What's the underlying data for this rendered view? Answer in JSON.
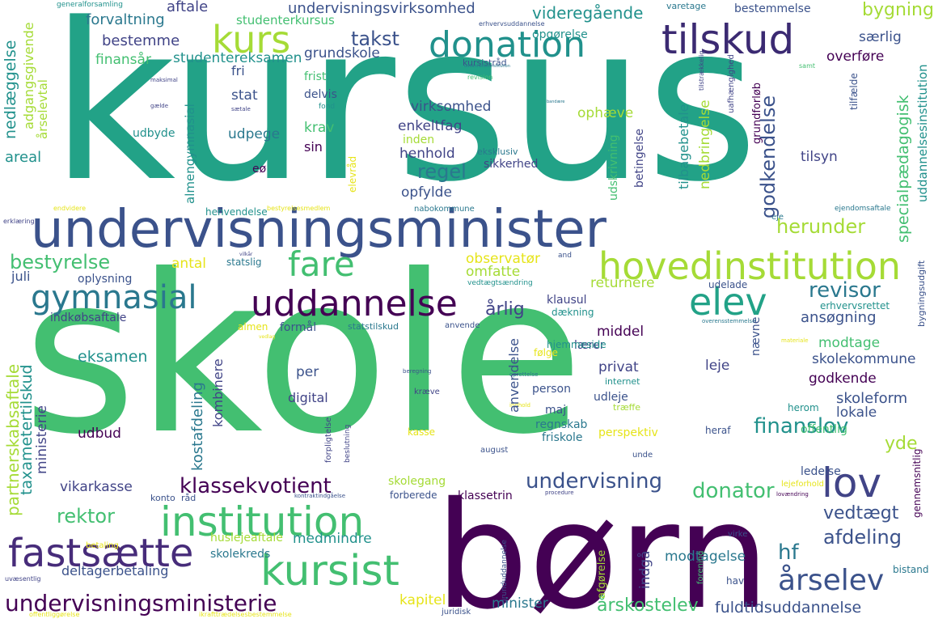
{
  "palette": {
    "teal": "#22a287",
    "green": "#43bf71",
    "lime": "#a5db36",
    "yellow": "#e6e419",
    "blue": "#3b528b",
    "indigo": "#414487",
    "purple": "#472c7a",
    "dark": "#440154",
    "cyan": "#2a788e",
    "sea": "#21918c"
  },
  "words": {
    "kursus": "kursus",
    "skole": "skole",
    "born": "børn",
    "undervisningsminister": "undervisningsminister",
    "tilskud": "tilskud",
    "donation": "donation",
    "kurs": "kurs",
    "hovedinstitution": "hovedinstitution",
    "institution": "institution",
    "fastsaette": "fastsætte",
    "kursist": "kursist",
    "uddannelse": "uddannelse",
    "elev": "elev",
    "fare": "fare",
    "gymnasial": "gymnasial",
    "lov": "lov",
    "undervisningsministerie": "undervisningsministerie",
    "aarselev": "årselev",
    "aarskostelev": "årskostelev",
    "klassekvotient": "klassekvotient",
    "undervisning": "undervisning",
    "finanslov": "finanslov",
    "donator": "donator",
    "bestyrelse": "bestyrelse",
    "regel": "regel",
    "takst": "takst",
    "revisor": "revisor",
    "rektor": "rektor",
    "afdeling": "afdeling",
    "hf": "hf",
    "herunder": "herunder",
    "bygning": "bygning",
    "videregaaende": "videregående",
    "undervisningsvirksomhed": "undervisningsvirksomhed",
    "studenterkursus": "studenterkursus",
    "studentereksamen": "studentereksamen",
    "forvaltning": "forvaltning",
    "bestemme": "bestemme",
    "aftale": "aftale",
    "finansaar": "finansår",
    "grundskole": "grundskole",
    "opgoerelse": "opgørelse",
    "saerlig": "særlig",
    "overfoere": "overføre",
    "bestemmelse": "bestemmelse",
    "varetage": "varetage",
    "generalforsamling": "generalforsamling",
    "erhvervsuddannelse": "erhvervsuddannelse",
    "kursisraad": "kursistråd",
    "revision": "revision",
    "samt": "samt",
    "fri": "fri",
    "frist": "frist",
    "stat": "stat",
    "delvis": "delvis",
    "fond": "fond",
    "virksomhed": "virksomhed",
    "ophaeve": "ophæve",
    "enkeltfag": "enkeltfag",
    "inden": "inden",
    "henhold": "henhold",
    "krav": "krav",
    "udpege": "udpege",
    "sin": "sin",
    "eksklusiv": "eksklusiv",
    "sikkerhed": "sikkerhed",
    "tilsyn": "tilsyn",
    "areal": "areal",
    "udbyde": "udbyde",
    "opfylde": "opfylde",
    "eoe": "eø",
    "henvendelse": "henvendelse",
    "nabokommune": "nabokommune",
    "endvidere": "endvidere",
    "ejendomsaftale": "ejendomsaftale",
    "eje": "eje",
    "antal": "antal",
    "juli": "juli",
    "oplysning": "oplysning",
    "statslig": "statslig",
    "observatoer": "observatør",
    "omfatte": "omfatte",
    "returnere": "returnere",
    "udelade": "udelade",
    "vedtaegtsaendring": "vedtægtsændring",
    "and": "and",
    "erhvervsrettet": "erhvervsrettet",
    "aarlig": "årlig",
    "klausul": "klausul",
    "daekning": "dækning",
    "indkoebsaftale": "indkøbsaftale",
    "formaal": "formål",
    "statstilskud": "statstilskud",
    "almen": "almen",
    "anvende": "anvende",
    "overensstemmelse": "overensstemmelse",
    "middel": "middel",
    "laerer": "lærer",
    "hjemmeside": "hjemmeside",
    "ansoegning": "ansøgning",
    "modtage": "modtage",
    "skolekommune": "skolekommune",
    "eksamen": "eksamen",
    "foelge": "følge",
    "per": "per",
    "privat": "privat",
    "leje": "leje",
    "godkende": "godkende",
    "skoleform": "skoleform",
    "lokale": "lokale",
    "digital": "digital",
    "person": "person",
    "maj": "maj",
    "udleje": "udleje",
    "internet": "internet",
    "traeffe": "træffe",
    "herom": "herom",
    "regnskab": "regnskab",
    "friskole": "friskole",
    "kasse": "kasse",
    "perspektiv": "perspektiv",
    "udbud": "udbud",
    "august": "august",
    "unde": "unde",
    "heraf": "heraf",
    "offentlig": "offentlig",
    "yde": "yde",
    "ledelse": "ledelse",
    "vikarkasse": "vikarkasse",
    "skolegang": "skolegang",
    "klassetrin": "klassetrin",
    "forberede": "forberede",
    "lejeforhold": "lejeforhold",
    "konto": "konto",
    "raad": "råd",
    "kontraktindgaaelse": "kontraktindgåelse",
    "procedure": "procedure",
    "medmindre": "medmindre",
    "vedtaegt": "vedtægt",
    "huslejeaftale": "huslejeaftale",
    "skolekreds": "skolekreds",
    "virke": "virke",
    "modtagelse": "modtagelse",
    "deltagerbetaling": "deltagerbetaling",
    "betaling": "betaling",
    "bistand": "bistand",
    "hav": "hav",
    "kapitel": "kapitel",
    "minister": "minister",
    "fuldtidsuddannelse": "fuldtidsuddannelse",
    "juridisk": "juridisk",
    "ikrafttraedelsesbestemmelse": "ikrafttrædelsesbestemmelse",
    "uvaesentlig": "uvæsentlig",
    "offentliggoerelse": "offentliggørelse",
    "nedlaeggelse": "nedlæggelse",
    "adgangsgivende": "adgangsgivende",
    "aarselevtal": "årselevtal",
    "almengymnasial": "almengymnasial",
    "elevraad": "elevråd",
    "godkendelse": "godkendelse",
    "nedbringelse": "nedbringelse",
    "tilbagebetale": "tilbagebetale",
    "betingelse": "betingelse",
    "udskrivning": "udskrivning",
    "specialpaedagogisk": "specialpædagogisk",
    "uddannelsesinstitution": "uddannelsesinstitution",
    "grundforloeb": "grundforløb",
    "tilfaelde": "tilfælde",
    "partnerskabsaftale": "partnerskabsaftale",
    "taxametertilskud": "taxametertilskud",
    "ministerie": "ministerie",
    "kostafdeling": "kostafdeling",
    "kombinere": "kombinere",
    "anvendelse": "anvendelse",
    "naevne": "nævne",
    "indgaa": "indgå",
    "afgoerelse": "afgørelse",
    "grunduddannelse": "grunduddannelse",
    "forening": "forening",
    "gennemsnitlig": "gennemsnitlig",
    "bygningsudgift": "bygningsudgift",
    "forpligtelse": "forpligtelse",
    "beslutning": "beslutning",
    "erklaering": "erklæring",
    "maksimal": "maksimal",
    "gaelde": "gælde",
    "saetale": "sætale",
    "uafhaengighed": "uafhængighed",
    "tilstraekkelig": "tilstrækkelig",
    "kraeve": "kræve",
    "beregning": "beregning",
    "oprettelse": "oprettelse",
    "indhold": "indhold",
    "materiale": "materiale",
    "lovaendring": "lovændring",
    "bestyrelsesmedlem": "bestyrelsesmedlem",
    "vilkaar": "vilkår",
    "bandaere": "bandære",
    "uddannelsesinstitution_small": "uddannelsesinstitution",
    "vedlag": "vedlag"
  }
}
